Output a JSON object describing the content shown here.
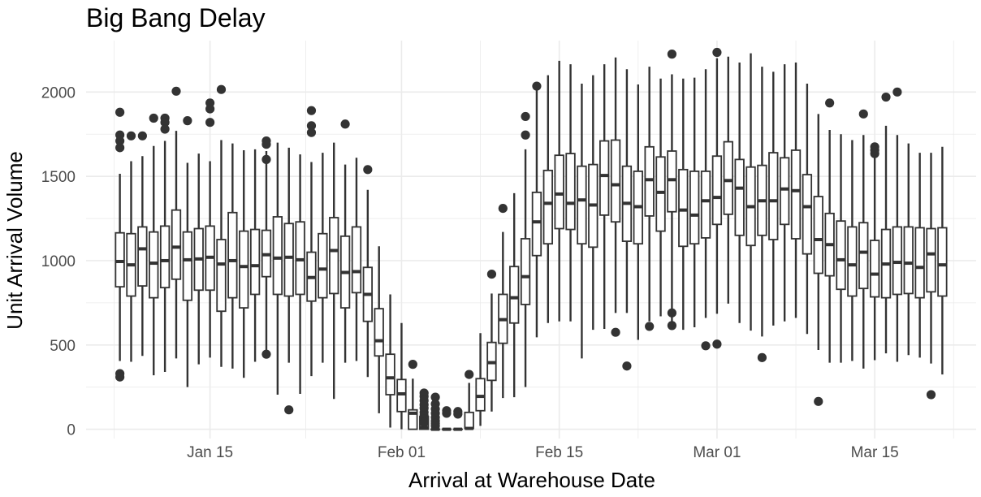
{
  "chart_data": {
    "type": "boxplot",
    "title": "Big Bang Delay",
    "xlabel": "Arrival at Warehouse Date",
    "ylabel": "Unit Arrival Volume",
    "xlim": [
      "2025-01-04",
      "2025-03-24"
    ],
    "ylim": [
      -55,
      2305
    ],
    "y_ticks": [
      0,
      500,
      1000,
      1500,
      2000
    ],
    "x_tick_dates": [
      "2025-01-15",
      "2025-02-01",
      "2025-02-15",
      "2025-03-01",
      "2025-03-15"
    ],
    "x_tick_labels": [
      "Jan 15",
      "Feb 01",
      "Feb 15",
      "Mar 01",
      "Mar 15"
    ],
    "grid": true,
    "colors": {
      "box_fill": "#ffffff",
      "box_stroke": "#333333",
      "grid": "#ebebeb",
      "outlier": "#333333"
    },
    "boxes": [
      {
        "date": "2025-01-07",
        "q1": 845,
        "median": 995,
        "q3": 1165,
        "low": 405,
        "high": 1515,
        "outliers": [
          1880,
          1745,
          1710,
          1670,
          330,
          310
        ]
      },
      {
        "date": "2025-01-08",
        "q1": 790,
        "median": 975,
        "q3": 1160,
        "low": 400,
        "high": 1590,
        "outliers": [
          1740
        ]
      },
      {
        "date": "2025-01-09",
        "q1": 850,
        "median": 1070,
        "q3": 1200,
        "low": 435,
        "high": 1620,
        "outliers": [
          1740
        ]
      },
      {
        "date": "2025-01-10",
        "q1": 780,
        "median": 985,
        "q3": 1170,
        "low": 320,
        "high": 1680,
        "outliers": [
          1845
        ]
      },
      {
        "date": "2025-01-11",
        "q1": 840,
        "median": 1000,
        "q3": 1205,
        "low": 340,
        "high": 1710,
        "outliers": [
          1845,
          1820,
          1780
        ]
      },
      {
        "date": "2025-01-12",
        "q1": 890,
        "median": 1080,
        "q3": 1300,
        "low": 420,
        "high": 1770,
        "outliers": [
          2005
        ]
      },
      {
        "date": "2025-01-13",
        "q1": 765,
        "median": 1005,
        "q3": 1170,
        "low": 250,
        "high": 1580,
        "outliers": [
          1830
        ]
      },
      {
        "date": "2025-01-14",
        "q1": 825,
        "median": 1010,
        "q3": 1190,
        "low": 385,
        "high": 1635,
        "outliers": []
      },
      {
        "date": "2025-01-15",
        "q1": 825,
        "median": 1020,
        "q3": 1205,
        "low": 425,
        "high": 1590,
        "outliers": [
          1935,
          1900,
          1820
        ]
      },
      {
        "date": "2025-01-16",
        "q1": 700,
        "median": 980,
        "q3": 1125,
        "low": 370,
        "high": 1715,
        "outliers": [
          2015
        ]
      },
      {
        "date": "2025-01-17",
        "q1": 780,
        "median": 1000,
        "q3": 1285,
        "low": 360,
        "high": 1695,
        "outliers": []
      },
      {
        "date": "2025-01-18",
        "q1": 720,
        "median": 965,
        "q3": 1175,
        "low": 305,
        "high": 1655,
        "outliers": []
      },
      {
        "date": "2025-01-19",
        "q1": 800,
        "median": 970,
        "q3": 1185,
        "low": 400,
        "high": 1660,
        "outliers": []
      },
      {
        "date": "2025-01-20",
        "q1": 905,
        "median": 1035,
        "q3": 1180,
        "low": 420,
        "high": 1650,
        "outliers": [
          1710,
          1690,
          1600,
          445
        ]
      },
      {
        "date": "2025-01-21",
        "q1": 800,
        "median": 1015,
        "q3": 1260,
        "low": 205,
        "high": 1700,
        "outliers": []
      },
      {
        "date": "2025-01-22",
        "q1": 790,
        "median": 1020,
        "q3": 1220,
        "low": 395,
        "high": 1670,
        "outliers": [
          115
        ]
      },
      {
        "date": "2025-01-23",
        "q1": 800,
        "median": 1005,
        "q3": 1230,
        "low": 210,
        "high": 1630,
        "outliers": []
      },
      {
        "date": "2025-01-24",
        "q1": 760,
        "median": 900,
        "q3": 1050,
        "low": 315,
        "high": 1585,
        "outliers": [
          1890,
          1800,
          1760
        ]
      },
      {
        "date": "2025-01-25",
        "q1": 780,
        "median": 950,
        "q3": 1160,
        "low": 395,
        "high": 1640,
        "outliers": []
      },
      {
        "date": "2025-01-26",
        "q1": 805,
        "median": 1060,
        "q3": 1255,
        "low": 180,
        "high": 1700,
        "outliers": []
      },
      {
        "date": "2025-01-27",
        "q1": 720,
        "median": 930,
        "q3": 1145,
        "low": 395,
        "high": 1570,
        "outliers": [
          1810
        ]
      },
      {
        "date": "2025-01-28",
        "q1": 810,
        "median": 935,
        "q3": 1200,
        "low": 405,
        "high": 1610,
        "outliers": []
      },
      {
        "date": "2025-01-29",
        "q1": 640,
        "median": 800,
        "q3": 960,
        "low": 310,
        "high": 1420,
        "outliers": [
          1540
        ]
      },
      {
        "date": "2025-01-30",
        "q1": 435,
        "median": 525,
        "q3": 715,
        "low": 95,
        "high": 1085,
        "outliers": []
      },
      {
        "date": "2025-01-31",
        "q1": 205,
        "median": 305,
        "q3": 445,
        "low": 10,
        "high": 800,
        "outliers": []
      },
      {
        "date": "2025-02-01",
        "q1": 105,
        "median": 210,
        "q3": 295,
        "low": 0,
        "high": 630,
        "outliers": []
      },
      {
        "date": "2025-02-02",
        "q1": 0,
        "median": 95,
        "q3": 115,
        "low": 0,
        "high": 300,
        "outliers": [
          385
        ]
      },
      {
        "date": "2025-02-03",
        "q1": 0,
        "median": 10,
        "q3": 75,
        "low": 0,
        "high": 155,
        "outliers": [
          215,
          195,
          170,
          145,
          125,
          100,
          80,
          60,
          40
        ]
      },
      {
        "date": "2025-02-04",
        "q1": 0,
        "median": 0,
        "q3": 0,
        "low": 0,
        "high": 0,
        "outliers": [
          190,
          150,
          120,
          95,
          70,
          50,
          35,
          20
        ]
      },
      {
        "date": "2025-02-05",
        "q1": 0,
        "median": 0,
        "q3": 0,
        "low": 0,
        "high": 0,
        "outliers": [
          110,
          95
        ]
      },
      {
        "date": "2025-02-06",
        "q1": 0,
        "median": 0,
        "q3": 0,
        "low": 0,
        "high": 0,
        "outliers": [
          105,
          90
        ]
      },
      {
        "date": "2025-02-07",
        "q1": 5,
        "median": 5,
        "q3": 100,
        "low": 0,
        "high": 275,
        "outliers": [
          325
        ]
      },
      {
        "date": "2025-02-08",
        "q1": 110,
        "median": 195,
        "q3": 300,
        "low": 20,
        "high": 570,
        "outliers": []
      },
      {
        "date": "2025-02-09",
        "q1": 290,
        "median": 395,
        "q3": 515,
        "low": 105,
        "high": 805,
        "outliers": [
          920
        ]
      },
      {
        "date": "2025-02-10",
        "q1": 510,
        "median": 650,
        "q3": 800,
        "low": 185,
        "high": 1170,
        "outliers": [
          1310
        ]
      },
      {
        "date": "2025-02-11",
        "q1": 630,
        "median": 780,
        "q3": 965,
        "low": 190,
        "high": 1400,
        "outliers": []
      },
      {
        "date": "2025-02-12",
        "q1": 740,
        "median": 905,
        "q3": 1130,
        "low": 250,
        "high": 1660,
        "outliers": [
          1855,
          1745
        ]
      },
      {
        "date": "2025-02-13",
        "q1": 1030,
        "median": 1230,
        "q3": 1405,
        "low": 545,
        "high": 2030,
        "outliers": [
          2035
        ]
      },
      {
        "date": "2025-02-14",
        "q1": 1100,
        "median": 1340,
        "q3": 1535,
        "low": 630,
        "high": 2100,
        "outliers": []
      },
      {
        "date": "2025-02-15",
        "q1": 1190,
        "median": 1395,
        "q3": 1625,
        "low": 640,
        "high": 2185,
        "outliers": []
      },
      {
        "date": "2025-02-16",
        "q1": 1185,
        "median": 1340,
        "q3": 1635,
        "low": 640,
        "high": 2165,
        "outliers": []
      },
      {
        "date": "2025-02-17",
        "q1": 1100,
        "median": 1360,
        "q3": 1560,
        "low": 420,
        "high": 2050,
        "outliers": []
      },
      {
        "date": "2025-02-18",
        "q1": 1080,
        "median": 1330,
        "q3": 1570,
        "low": 590,
        "high": 2100,
        "outliers": []
      },
      {
        "date": "2025-02-19",
        "q1": 1270,
        "median": 1505,
        "q3": 1710,
        "low": 595,
        "high": 2165,
        "outliers": []
      },
      {
        "date": "2025-02-20",
        "q1": 1230,
        "median": 1450,
        "q3": 1715,
        "low": 690,
        "high": 2205,
        "outliers": [
          575
        ]
      },
      {
        "date": "2025-02-21",
        "q1": 1115,
        "median": 1340,
        "q3": 1560,
        "low": 690,
        "high": 2135,
        "outliers": [
          375
        ]
      },
      {
        "date": "2025-02-22",
        "q1": 1100,
        "median": 1320,
        "q3": 1530,
        "low": 530,
        "high": 2045,
        "outliers": []
      },
      {
        "date": "2025-02-23",
        "q1": 1265,
        "median": 1480,
        "q3": 1675,
        "low": 640,
        "high": 2150,
        "outliers": [
          610
        ]
      },
      {
        "date": "2025-02-24",
        "q1": 1175,
        "median": 1405,
        "q3": 1615,
        "low": 670,
        "high": 2080,
        "outliers": []
      },
      {
        "date": "2025-02-25",
        "q1": 1290,
        "median": 1480,
        "q3": 1650,
        "low": 590,
        "high": 2105,
        "outliers": [
          2225,
          690,
          615
        ]
      },
      {
        "date": "2025-02-26",
        "q1": 1085,
        "median": 1300,
        "q3": 1540,
        "low": 590,
        "high": 2080,
        "outliers": []
      },
      {
        "date": "2025-02-27",
        "q1": 1100,
        "median": 1270,
        "q3": 1530,
        "low": 605,
        "high": 2085,
        "outliers": []
      },
      {
        "date": "2025-02-28",
        "q1": 1135,
        "median": 1355,
        "q3": 1530,
        "low": 660,
        "high": 2135,
        "outliers": [
          495
        ]
      },
      {
        "date": "2025-03-01",
        "q1": 1215,
        "median": 1375,
        "q3": 1620,
        "low": 685,
        "high": 2200,
        "outliers": [
          2235,
          505
        ]
      },
      {
        "date": "2025-03-02",
        "q1": 1275,
        "median": 1475,
        "q3": 1705,
        "low": 745,
        "high": 2210,
        "outliers": []
      },
      {
        "date": "2025-03-03",
        "q1": 1150,
        "median": 1430,
        "q3": 1600,
        "low": 630,
        "high": 2175,
        "outliers": []
      },
      {
        "date": "2025-03-04",
        "q1": 1090,
        "median": 1320,
        "q3": 1555,
        "low": 585,
        "high": 2230,
        "outliers": []
      },
      {
        "date": "2025-03-05",
        "q1": 1150,
        "median": 1355,
        "q3": 1565,
        "low": 550,
        "high": 2150,
        "outliers": [
          425
        ]
      },
      {
        "date": "2025-03-06",
        "q1": 1125,
        "median": 1355,
        "q3": 1640,
        "low": 615,
        "high": 2120,
        "outliers": []
      },
      {
        "date": "2025-03-07",
        "q1": 1215,
        "median": 1425,
        "q3": 1610,
        "low": 640,
        "high": 2165,
        "outliers": []
      },
      {
        "date": "2025-03-08",
        "q1": 1130,
        "median": 1415,
        "q3": 1655,
        "low": 660,
        "high": 2175,
        "outliers": []
      },
      {
        "date": "2025-03-09",
        "q1": 1040,
        "median": 1320,
        "q3": 1510,
        "low": 565,
        "high": 2050,
        "outliers": []
      },
      {
        "date": "2025-03-10",
        "q1": 925,
        "median": 1125,
        "q3": 1380,
        "low": 470,
        "high": 1870,
        "outliers": [
          165
        ]
      },
      {
        "date": "2025-03-11",
        "q1": 910,
        "median": 1095,
        "q3": 1280,
        "low": 395,
        "high": 1775,
        "outliers": [
          1935
        ]
      },
      {
        "date": "2025-03-12",
        "q1": 830,
        "median": 1005,
        "q3": 1235,
        "low": 395,
        "high": 1750,
        "outliers": []
      },
      {
        "date": "2025-03-13",
        "q1": 790,
        "median": 975,
        "q3": 1200,
        "low": 405,
        "high": 1715,
        "outliers": []
      },
      {
        "date": "2025-03-14",
        "q1": 835,
        "median": 1050,
        "q3": 1225,
        "low": 360,
        "high": 1745,
        "outliers": [
          1870
        ]
      },
      {
        "date": "2025-03-15",
        "q1": 785,
        "median": 920,
        "q3": 1120,
        "low": 410,
        "high": 1620,
        "outliers": [
          1675,
          1655,
          1635
        ]
      },
      {
        "date": "2025-03-16",
        "q1": 780,
        "median": 980,
        "q3": 1185,
        "low": 450,
        "high": 1800,
        "outliers": [
          1970
        ]
      },
      {
        "date": "2025-03-17",
        "q1": 800,
        "median": 990,
        "q3": 1200,
        "low": 400,
        "high": 1745,
        "outliers": [
          2000
        ]
      },
      {
        "date": "2025-03-18",
        "q1": 805,
        "median": 985,
        "q3": 1200,
        "low": 440,
        "high": 1695,
        "outliers": []
      },
      {
        "date": "2025-03-19",
        "q1": 780,
        "median": 960,
        "q3": 1195,
        "low": 425,
        "high": 1640,
        "outliers": []
      },
      {
        "date": "2025-03-20",
        "q1": 815,
        "median": 1040,
        "q3": 1190,
        "low": 390,
        "high": 1640,
        "outliers": [
          205
        ]
      },
      {
        "date": "2025-03-21",
        "q1": 790,
        "median": 975,
        "q3": 1195,
        "low": 325,
        "high": 1675,
        "outliers": []
      }
    ]
  }
}
